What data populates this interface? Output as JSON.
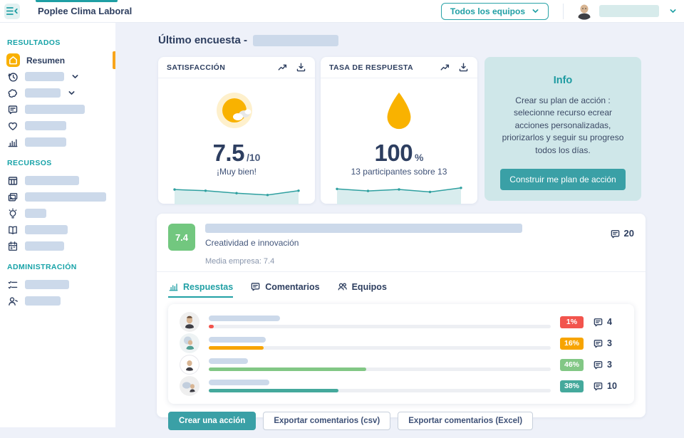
{
  "colors": {
    "accent_teal": "#1f9fa4",
    "navy": "#2d3e5f",
    "main_bg": "#eef1f9",
    "placeholder": "#ccd9ea",
    "info_bg": "#cfe7e9",
    "active_yellow": "#f9b000",
    "badge_green": "#72c77f"
  },
  "topbar": {
    "title": "Poplee Clima Laboral",
    "team_filter": "Todos los equipos"
  },
  "sidebar": {
    "sections": [
      {
        "title": "RESULTADOS",
        "items": [
          {
            "icon": "home-icon",
            "label": "Resumen",
            "active": true
          },
          {
            "icon": "history-icon",
            "ph": 55,
            "chevron": true
          },
          {
            "icon": "puzzle-icon",
            "ph": 50,
            "chevron": true
          },
          {
            "icon": "comment-icon",
            "ph": 84
          },
          {
            "icon": "heart-icon",
            "ph": 58
          },
          {
            "icon": "bar-chart-icon",
            "ph": 58
          }
        ]
      },
      {
        "title": "RECURSOS",
        "items": [
          {
            "icon": "table-icon",
            "ph": 76
          },
          {
            "icon": "image-icon",
            "ph": 114
          },
          {
            "icon": "lightbulb-icon",
            "ph": 30
          },
          {
            "icon": "book-icon",
            "ph": 60
          },
          {
            "icon": "calendar-icon",
            "ph": 55
          }
        ]
      },
      {
        "title": "ADMINISTRACIÓN",
        "items": [
          {
            "icon": "checklist-icon",
            "ph": 62
          },
          {
            "icon": "user-icon",
            "ph": 50
          }
        ]
      }
    ]
  },
  "main": {
    "heading": "Último encuesta -",
    "satisfaction": {
      "title": "SATISFACCIÓN",
      "score": "7.5",
      "suffix": "/10",
      "caption": "¡Muy bien!"
    },
    "response_rate": {
      "title": "TASA DE RESPUESTA",
      "score": "100",
      "suffix": "%",
      "caption": "13 participantes sobre 13"
    },
    "info": {
      "title": "Info",
      "body": "Crear su plan de acción : selecionne recurso ecrear acciones personalizadas, priorizarlos y seguir su progreso todos los días.",
      "button": "Construir me plan de acción"
    },
    "question": {
      "score": "7.4",
      "category": "Creatividad e innovación",
      "average": "Media empresa: 7.4",
      "comments": "20"
    },
    "tabs": [
      {
        "icon": "bar-chart-icon",
        "label": "Respuestas",
        "active": true
      },
      {
        "icon": "comment-icon",
        "label": "Comentarios"
      },
      {
        "icon": "people-icon",
        "label": "Equipos"
      }
    ],
    "rows": [
      {
        "avatar": "avatar-1",
        "ph": 100,
        "percent": 1,
        "badge": "1%",
        "color": "#f2544d",
        "comments": "4"
      },
      {
        "avatar": "avatar-2",
        "ph": 80,
        "percent": 16,
        "badge": "16%",
        "color": "#f7a400",
        "comments": "3"
      },
      {
        "avatar": "avatar-3",
        "ph": 55,
        "percent": 46,
        "badge": "46%",
        "color": "#82c785",
        "comments": "3"
      },
      {
        "avatar": "avatar-4",
        "ph": 85,
        "percent": 38,
        "badge": "38%",
        "color": "#45a99c",
        "comments": "10"
      }
    ],
    "actions": [
      {
        "label": "Crear una acción",
        "primary": true
      },
      {
        "label": "Exportar comentarios (csv)",
        "primary": false
      },
      {
        "label": "Exportar comentarios (Excel)",
        "primary": false
      }
    ]
  },
  "chart_data": [
    {
      "type": "area",
      "title": "Satisfacción sparkline",
      "x": [
        1,
        2,
        3,
        4,
        5
      ],
      "values": [
        7.7,
        7.6,
        7.4,
        7.25,
        7.6
      ],
      "ylim": [
        7.0,
        8.0
      ],
      "line_color": "#2fa0a0",
      "fill_color": "#d9edee"
    },
    {
      "type": "area",
      "title": "Tasa de respuesta sparkline",
      "x": [
        1,
        2,
        3,
        4,
        5
      ],
      "values": [
        97,
        95,
        96.5,
        94,
        98
      ],
      "ylim": [
        88,
        100
      ],
      "line_color": "#2fa0a0",
      "fill_color": "#d9edee"
    }
  ]
}
